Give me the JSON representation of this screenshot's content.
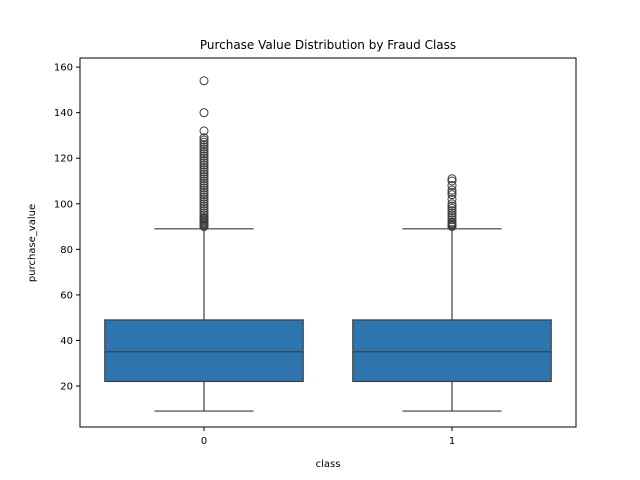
{
  "chart_data": {
    "type": "boxplot",
    "title": "Purchase Value Distribution by Fraud Class",
    "xlabel": "class",
    "ylabel": "purchase_value",
    "categories": [
      "0",
      "1"
    ],
    "ylim": [
      2,
      164
    ],
    "y_ticks": [
      20,
      40,
      60,
      80,
      100,
      120,
      140,
      160
    ],
    "y_tick_labels": [
      "20",
      "40",
      "60",
      "80",
      "100",
      "120",
      "140",
      "160"
    ],
    "box_color": "#2e75b0",
    "line_color": "#3c3c3c",
    "boxes": [
      {
        "category": "0",
        "whisker_low": 9,
        "q1": 22,
        "median": 35,
        "q3": 49,
        "whisker_high": 89,
        "outliers": [
          90,
          90.5,
          91,
          91.5,
          92,
          92.5,
          93,
          93.5,
          94,
          95,
          96,
          97,
          98,
          99,
          100,
          101,
          102,
          103,
          104,
          105,
          106,
          107,
          108,
          109,
          110,
          111,
          112,
          113,
          114,
          115,
          116,
          117,
          118,
          119,
          120,
          121,
          122,
          123,
          124,
          125,
          126,
          127,
          128,
          129,
          132,
          140,
          154
        ]
      },
      {
        "category": "1",
        "whisker_low": 9,
        "q1": 22,
        "median": 35,
        "q3": 49,
        "whisker_high": 89,
        "outliers": [
          90,
          90.5,
          91,
          91.5,
          92,
          93,
          94,
          95,
          96,
          97,
          98,
          99,
          100,
          102,
          104,
          105,
          106,
          108,
          110,
          111
        ]
      }
    ]
  }
}
